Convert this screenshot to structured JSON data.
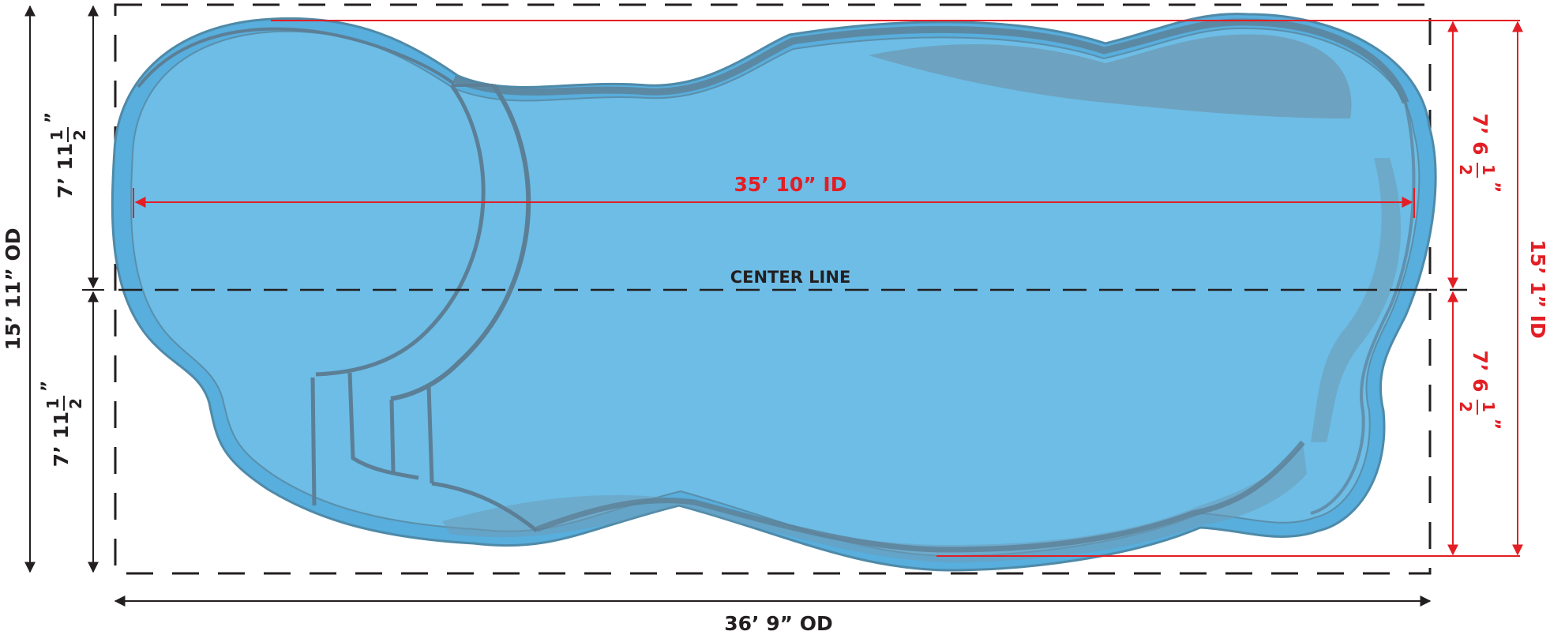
{
  "colors": {
    "water": "#6dbde6",
    "rim": "#58aedd",
    "edge": "#4f8aa8",
    "ledge": "#5c7f96",
    "shadow": "#6e9ab3",
    "black": "#231f20",
    "red": "#e31e24"
  },
  "labels": {
    "center_line": "CENTER LINE",
    "id_length": "35’ 10” ID",
    "od_length": "36’ 9” OD",
    "od_width": "15’ 11” OD",
    "id_width": "15’ 1” ID",
    "half_od_whole": "7’ 11",
    "half_id_whole": "7’ 6",
    "inch_mark": "”",
    "frac_num": "1",
    "frac_den": "2"
  }
}
